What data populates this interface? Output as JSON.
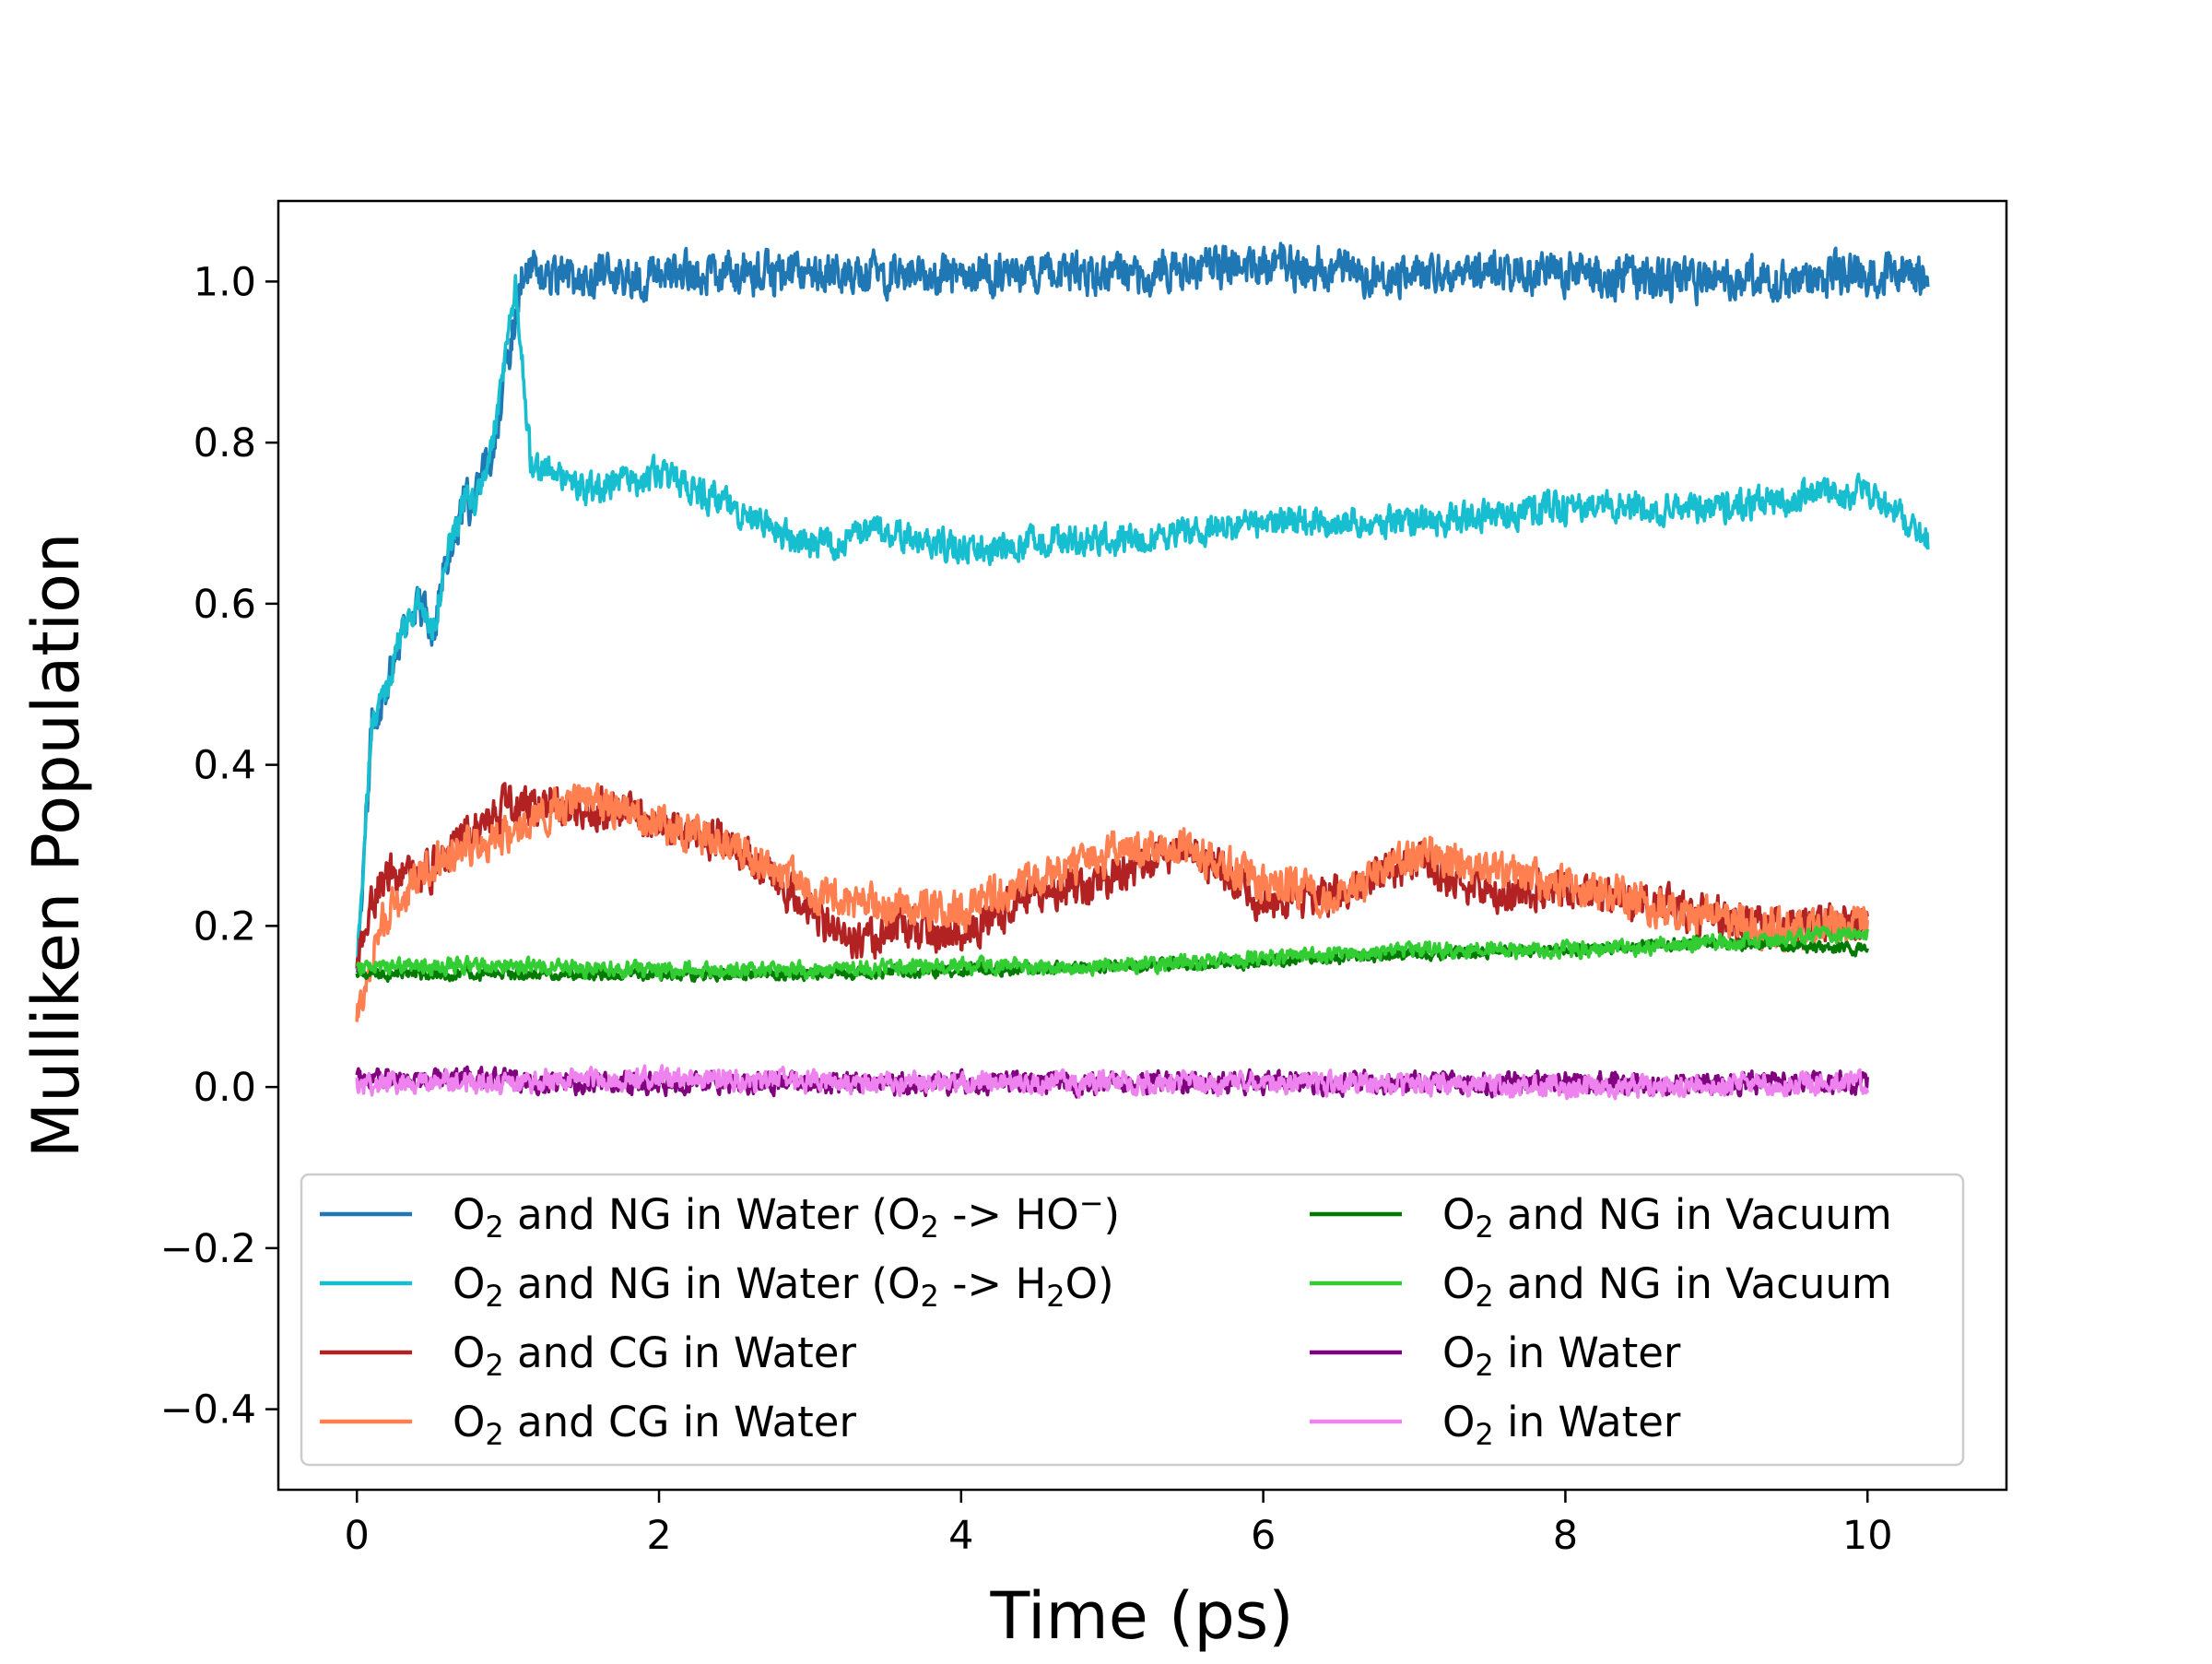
{
  "chart_data": {
    "type": "line",
    "title": "",
    "xlabel": "Time (ps)",
    "ylabel": "Mulliken Population",
    "xlim": [
      -0.52,
      10.92
    ],
    "ylim": [
      -0.5,
      1.1
    ],
    "xticks": [
      0,
      2,
      4,
      6,
      8,
      10
    ],
    "xtick_labels": [
      "0",
      "2",
      "4",
      "6",
      "8",
      "10"
    ],
    "yticks": [
      -0.4,
      -0.2,
      0.0,
      0.2,
      0.4,
      0.6,
      0.8,
      1.0
    ],
    "ytick_labels": [
      "−0.4",
      "−0.2",
      "0.0",
      "0.2",
      "0.4",
      "0.6",
      "0.8",
      "1.0"
    ],
    "grid": false,
    "legend_position": "lower-center",
    "series": [
      {
        "id": "ng-water-ho",
        "name": "O2 and NG in Water (O2 -> HO⁻)",
        "legend_parts": {
          "a": "O",
          "a_sub": "2",
          "b": " and NG in Water (O",
          "b_sub": "2",
          "c": " -> HO",
          "c_sup": "−",
          "d": ")"
        },
        "color": "#1f77b4",
        "noise": 0.022,
        "points": [
          [
            0,
            0.15
          ],
          [
            0.1,
            0.45
          ],
          [
            0.2,
            0.5
          ],
          [
            0.3,
            0.57
          ],
          [
            0.4,
            0.6
          ],
          [
            0.5,
            0.57
          ],
          [
            0.6,
            0.66
          ],
          [
            0.7,
            0.72
          ],
          [
            0.8,
            0.73
          ],
          [
            0.9,
            0.8
          ],
          [
            1.0,
            0.9
          ],
          [
            1.1,
            1.02
          ],
          [
            1.3,
            1.0
          ],
          [
            2,
            1.01
          ],
          [
            3,
            1.01
          ],
          [
            4,
            1.01
          ],
          [
            5,
            1.01
          ],
          [
            6,
            1.02
          ],
          [
            7,
            1.01
          ],
          [
            8,
            1.01
          ],
          [
            9,
            1.0
          ],
          [
            10,
            1.01
          ],
          [
            10.4,
            1.01
          ]
        ]
      },
      {
        "id": "ng-water-h2o",
        "name": "O2 and NG in Water (O2 -> H2O)",
        "legend_parts": {
          "a": "O",
          "a_sub": "2",
          "b": " and NG in Water (O",
          "b_sub": "2",
          "c": " -> H",
          "c_sub": "2",
          "d": "O)"
        },
        "color": "#17becf",
        "noise": 0.016,
        "points": [
          [
            0,
            0.15
          ],
          [
            0.1,
            0.45
          ],
          [
            0.2,
            0.5
          ],
          [
            0.3,
            0.57
          ],
          [
            0.4,
            0.6
          ],
          [
            0.5,
            0.57
          ],
          [
            0.6,
            0.66
          ],
          [
            0.7,
            0.72
          ],
          [
            0.8,
            0.73
          ],
          [
            0.9,
            0.8
          ],
          [
            1.0,
            0.92
          ],
          [
            1.05,
            1.0
          ],
          [
            1.15,
            0.78
          ],
          [
            1.5,
            0.74
          ],
          [
            2,
            0.76
          ],
          [
            2.5,
            0.72
          ],
          [
            3,
            0.67
          ],
          [
            3.5,
            0.69
          ],
          [
            4,
            0.67
          ],
          [
            5,
            0.68
          ],
          [
            6,
            0.7
          ],
          [
            7,
            0.7
          ],
          [
            8,
            0.72
          ],
          [
            9,
            0.72
          ],
          [
            10,
            0.74
          ],
          [
            10.4,
            0.68
          ]
        ]
      },
      {
        "id": "cg-water-1",
        "name": "O2 and CG in Water",
        "legend_parts": {
          "a": "O",
          "a_sub": "2",
          "b": " and CG in Water"
        },
        "color": "#b22222",
        "noise": 0.02,
        "points": [
          [
            0,
            0.15
          ],
          [
            0.15,
            0.26
          ],
          [
            0.5,
            0.27
          ],
          [
            0.8,
            0.32
          ],
          [
            1.0,
            0.35
          ],
          [
            1.5,
            0.35
          ],
          [
            2,
            0.33
          ],
          [
            2.5,
            0.3
          ],
          [
            3,
            0.22
          ],
          [
            3.3,
            0.18
          ],
          [
            3.6,
            0.2
          ],
          [
            4,
            0.19
          ],
          [
            4.5,
            0.24
          ],
          [
            5,
            0.26
          ],
          [
            5.5,
            0.3
          ],
          [
            6,
            0.23
          ],
          [
            6.5,
            0.24
          ],
          [
            7,
            0.28
          ],
          [
            7.5,
            0.24
          ],
          [
            8,
            0.25
          ],
          [
            8.5,
            0.23
          ],
          [
            9,
            0.21
          ],
          [
            9.5,
            0.2
          ],
          [
            10,
            0.21
          ]
        ]
      },
      {
        "id": "cg-water-2",
        "name": "O2 and CG in Water",
        "legend_parts": {
          "a": "O",
          "a_sub": "2",
          "b": " and CG in Water"
        },
        "color": "#ff7f50",
        "noise": 0.02,
        "points": [
          [
            0,
            0.08
          ],
          [
            0.15,
            0.2
          ],
          [
            0.5,
            0.28
          ],
          [
            1,
            0.32
          ],
          [
            1.5,
            0.36
          ],
          [
            2,
            0.33
          ],
          [
            2.5,
            0.3
          ],
          [
            3,
            0.24
          ],
          [
            3.5,
            0.22
          ],
          [
            4,
            0.22
          ],
          [
            4.5,
            0.26
          ],
          [
            5,
            0.29
          ],
          [
            5.5,
            0.3
          ],
          [
            6,
            0.25
          ],
          [
            6.5,
            0.24
          ],
          [
            7,
            0.29
          ],
          [
            7.5,
            0.27
          ],
          [
            8,
            0.25
          ],
          [
            8.5,
            0.23
          ],
          [
            9,
            0.21
          ],
          [
            9.5,
            0.19
          ],
          [
            10,
            0.21
          ]
        ]
      },
      {
        "id": "ng-vacuum-1",
        "name": "O2 and NG in Vacuum",
        "legend_parts": {
          "a": "O",
          "a_sub": "2",
          "b": " and NG in Vacuum"
        },
        "color": "#007a00",
        "noise": 0.006,
        "points": [
          [
            0,
            0.14
          ],
          [
            1,
            0.14
          ],
          [
            2,
            0.14
          ],
          [
            3,
            0.14
          ],
          [
            4,
            0.145
          ],
          [
            5,
            0.15
          ],
          [
            6,
            0.155
          ],
          [
            7,
            0.165
          ],
          [
            8,
            0.17
          ],
          [
            9,
            0.18
          ],
          [
            10,
            0.17
          ]
        ]
      },
      {
        "id": "ng-vacuum-2",
        "name": "O2 and NG in Vacuum",
        "legend_parts": {
          "a": "O",
          "a_sub": "2",
          "b": " and NG in Vacuum"
        },
        "color": "#32cd32",
        "noise": 0.008,
        "points": [
          [
            0,
            0.15
          ],
          [
            1,
            0.15
          ],
          [
            2,
            0.145
          ],
          [
            3,
            0.145
          ],
          [
            4,
            0.15
          ],
          [
            5,
            0.15
          ],
          [
            6,
            0.16
          ],
          [
            7,
            0.17
          ],
          [
            8,
            0.17
          ],
          [
            9,
            0.18
          ],
          [
            10,
            0.19
          ]
        ]
      },
      {
        "id": "water-1",
        "name": "O2 in Water",
        "legend_parts": {
          "a": "O",
          "a_sub": "2",
          "b": " in Water"
        },
        "color": "#800080",
        "noise": 0.011,
        "points": [
          [
            0,
            0.01
          ],
          [
            2,
            0.005
          ],
          [
            4,
            0.005
          ],
          [
            6,
            0.005
          ],
          [
            8,
            0.005
          ],
          [
            10,
            0.005
          ]
        ]
      },
      {
        "id": "water-2",
        "name": "O2 in Water",
        "legend_parts": {
          "a": "O",
          "a_sub": "2",
          "b": " in Water"
        },
        "color": "#ee82ee",
        "noise": 0.011,
        "points": [
          [
            0,
            0.005
          ],
          [
            2,
            0.01
          ],
          [
            4,
            0.005
          ],
          [
            6,
            0.005
          ],
          [
            8,
            0.0
          ],
          [
            10,
            0.005
          ]
        ]
      }
    ]
  }
}
